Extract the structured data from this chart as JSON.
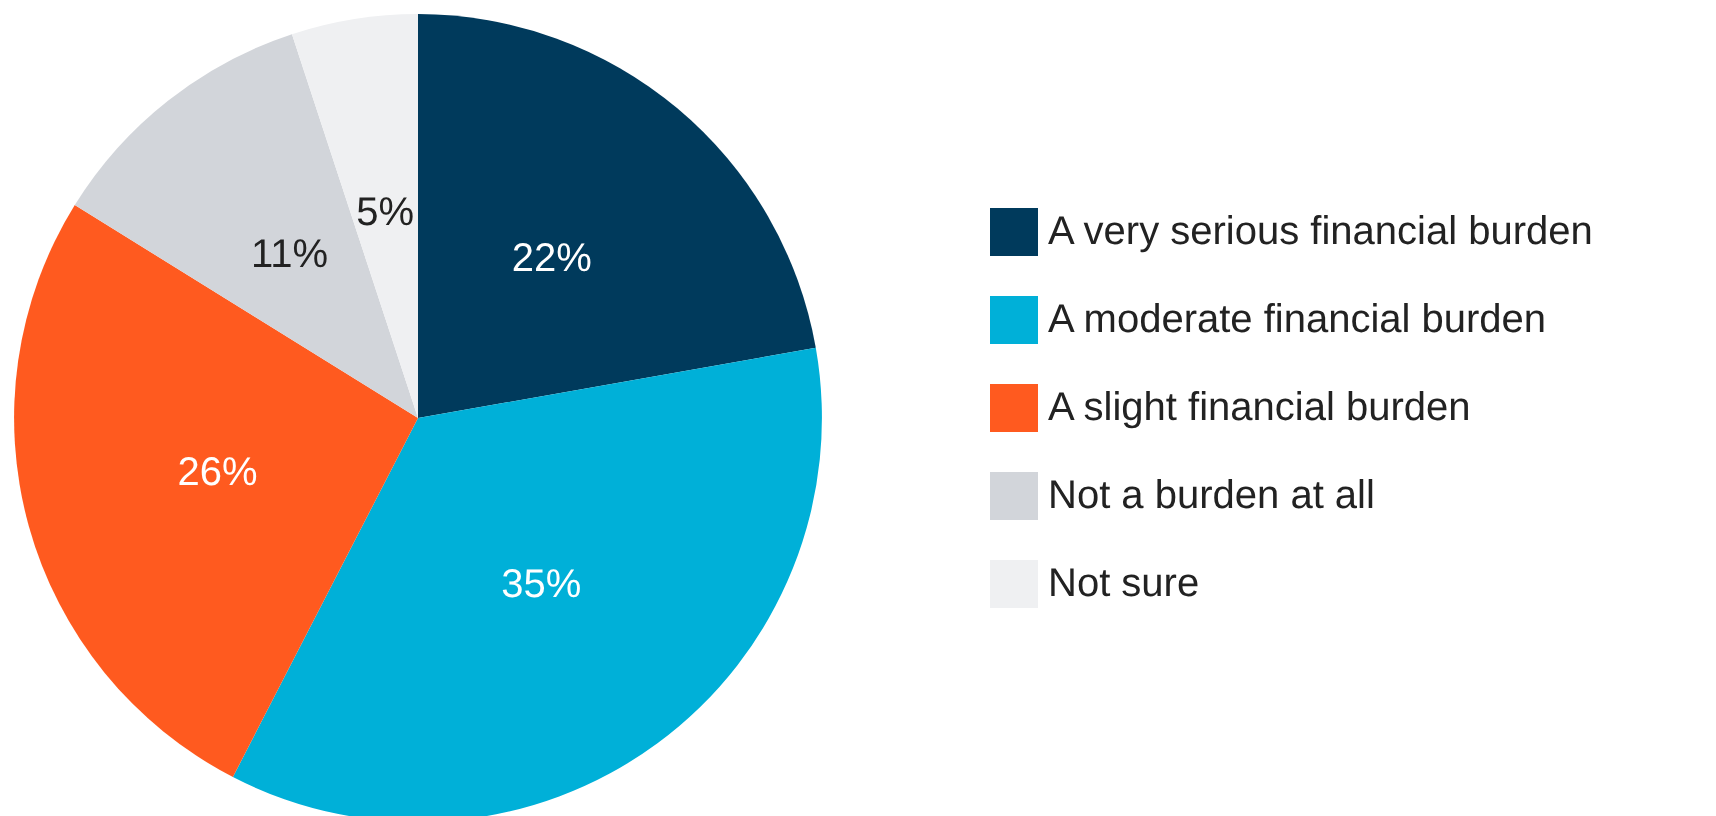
{
  "chart_data": {
    "type": "pie",
    "categories": [
      "A very serious financial burden",
      "A moderate financial burden",
      "A slight financial burden",
      "Not a burden at all",
      "Not sure"
    ],
    "values": [
      22,
      35,
      26,
      11,
      5
    ],
    "colors": [
      "#003a5c",
      "#00b0d8",
      "#ff5a1f",
      "#d2d5da",
      "#eff0f2"
    ],
    "value_labels": [
      "22%",
      "35%",
      "26%",
      "11%",
      "5%"
    ],
    "legend": "right"
  }
}
